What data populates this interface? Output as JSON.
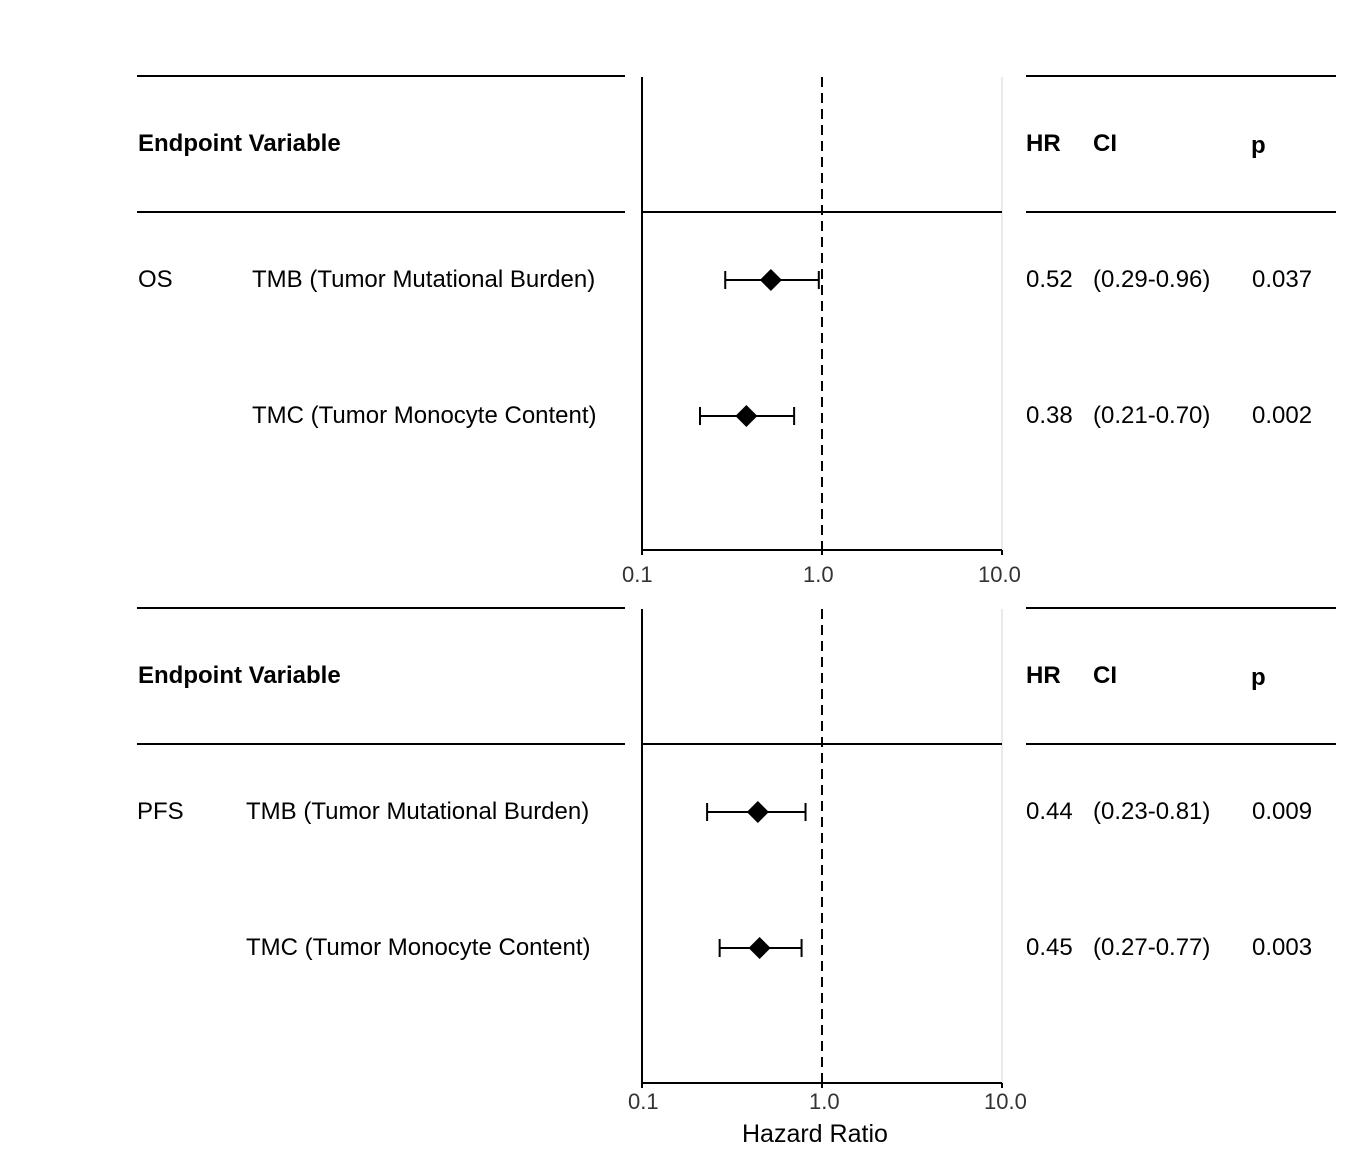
{
  "headers": {
    "endpoint_variable": "Endpoint Variable",
    "hr": "HR",
    "ci": "CI",
    "p": "p"
  },
  "axis": {
    "xlabel": "Hazard Ratio",
    "ticks": [
      "0.1",
      "1.0",
      "10.0"
    ]
  },
  "chart_data": [
    {
      "type": "forest",
      "endpoint": "OS",
      "scale": "log",
      "xlim": [
        0.1,
        10.0
      ],
      "reference_line": 1.0,
      "rows": [
        {
          "variable": "TMB (Tumor Mutational Burden)",
          "hr": 0.52,
          "lo": 0.29,
          "hi": 0.96,
          "hr_text": "0.52",
          "ci_text": "(0.29-0.96)",
          "p_text": "0.037"
        },
        {
          "variable": "TMC (Tumor Monocyte Content)",
          "hr": 0.38,
          "lo": 0.21,
          "hi": 0.7,
          "hr_text": "0.38",
          "ci_text": "(0.21-0.70)",
          "p_text": "0.002"
        }
      ]
    },
    {
      "type": "forest",
      "endpoint": "PFS",
      "scale": "log",
      "xlim": [
        0.1,
        10.0
      ],
      "reference_line": 1.0,
      "rows": [
        {
          "variable": "TMB (Tumor Mutational Burden)",
          "hr": 0.44,
          "lo": 0.23,
          "hi": 0.81,
          "hr_text": "0.44",
          "ci_text": "(0.23-0.81)",
          "p_text": "0.009"
        },
        {
          "variable": "TMC (Tumor Monocyte Content)",
          "hr": 0.45,
          "lo": 0.27,
          "hi": 0.77,
          "hr_text": "0.45",
          "ci_text": "(0.27-0.77)",
          "p_text": "0.003"
        }
      ]
    }
  ]
}
